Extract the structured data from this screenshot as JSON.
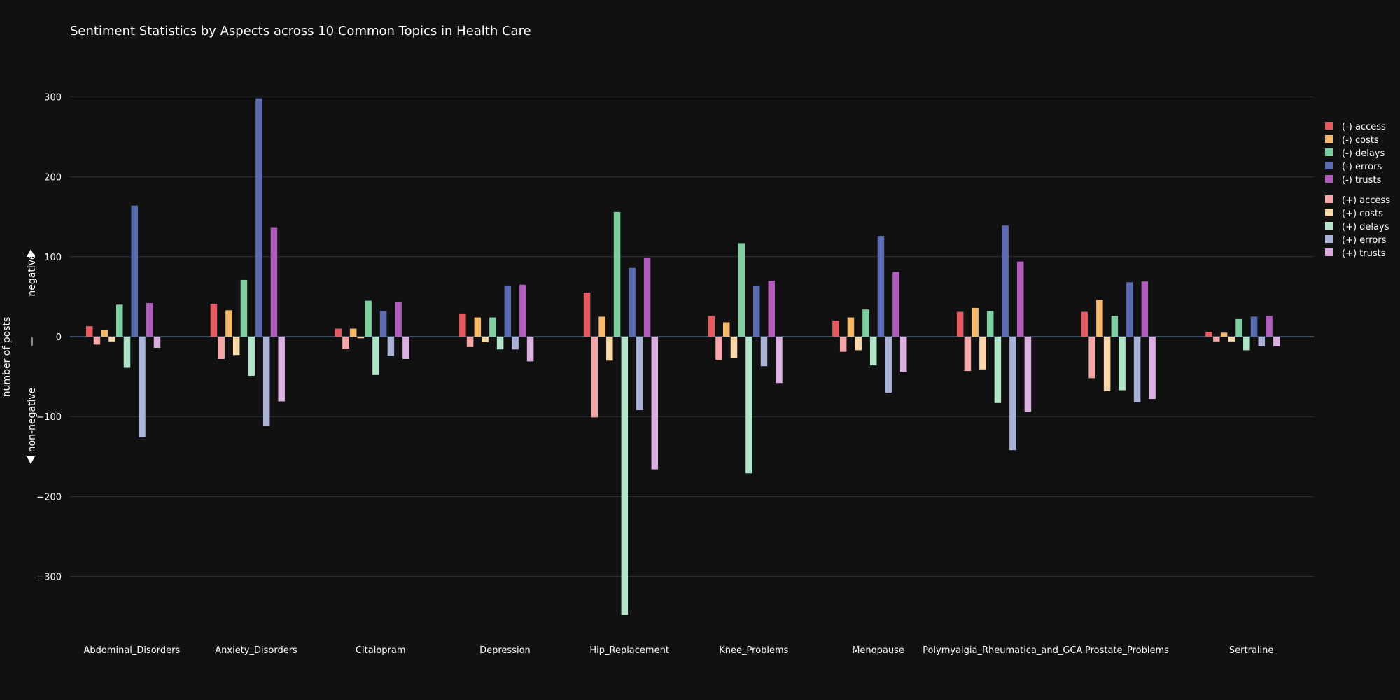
{
  "chart_data": {
    "type": "bar",
    "title": "Sentiment Statistics by Aspects across 10 Common Topics in Health Care",
    "ylabel": "number of posts",
    "ylabel_top": "negative",
    "ylabel_bottom": "non-negative",
    "ylabel_mid": "—",
    "ylim": [
      -370,
      300
    ],
    "yticks": [
      300,
      200,
      100,
      0,
      -100,
      -200,
      -300
    ],
    "ytick_labels": [
      "300",
      "200",
      "100",
      "0",
      "−100",
      "−200",
      "−300"
    ],
    "grid": true,
    "legend_placement": "right",
    "categories": [
      "Abdominal_Disorders",
      "Anxiety_Disorders",
      "Citalopram",
      "Depression",
      "Hip_Replacement",
      "Knee_Problems",
      "Menopause",
      "Polymyalgia_Rheumatica_and_GCA",
      "Prostate_Problems",
      "Sertraline"
    ],
    "series": [
      {
        "name": "(-) access",
        "color": "#e45c62",
        "values": [
          13,
          41,
          10,
          29,
          55,
          26,
          20,
          31,
          31,
          6
        ]
      },
      {
        "name": "(+) access",
        "color": "#f4a6a8",
        "values": [
          -10,
          -28,
          -15,
          -13,
          -101,
          -29,
          -19,
          -43,
          -52,
          -6
        ]
      },
      {
        "name": "(-) costs",
        "color": "#f6b86a",
        "values": [
          8,
          33,
          10,
          24,
          25,
          18,
          24,
          36,
          46,
          5
        ]
      },
      {
        "name": "(+) costs",
        "color": "#fbd8aa",
        "values": [
          -6,
          -23,
          -2,
          -7,
          -30,
          -27,
          -17,
          -41,
          -68,
          -6
        ]
      },
      {
        "name": "(-) delays",
        "color": "#7fce9f",
        "values": [
          40,
          71,
          45,
          24,
          156,
          117,
          34,
          32,
          26,
          22
        ]
      },
      {
        "name": "(+) delays",
        "color": "#b3e5cb",
        "values": [
          -39,
          -49,
          -48,
          -16,
          -348,
          -171,
          -36,
          -83,
          -67,
          -17
        ]
      },
      {
        "name": "(-) errors",
        "color": "#5c6cb3",
        "values": [
          164,
          298,
          32,
          64,
          86,
          64,
          126,
          139,
          68,
          25
        ]
      },
      {
        "name": "(+) errors",
        "color": "#aab2d8",
        "values": [
          -126,
          -112,
          -24,
          -16,
          -92,
          -37,
          -70,
          -142,
          -82,
          -12
        ]
      },
      {
        "name": "(-) trusts",
        "color": "#b05cba",
        "values": [
          42,
          137,
          43,
          65,
          99,
          70,
          81,
          94,
          69,
          26
        ]
      },
      {
        "name": "(+) trusts",
        "color": "#dbb0e0",
        "values": [
          -14,
          -81,
          -28,
          -31,
          -166,
          -58,
          -44,
          -94,
          -78,
          -12
        ]
      }
    ],
    "legend": [
      {
        "name": "(-) access",
        "color": "#e45c62"
      },
      {
        "name": "(-) costs",
        "color": "#f6b86a"
      },
      {
        "name": "(-) delays",
        "color": "#7fce9f"
      },
      {
        "name": "(-) errors",
        "color": "#5c6cb3"
      },
      {
        "name": "(-) trusts",
        "color": "#b05cba"
      },
      {
        "name": "(+) access",
        "color": "#f4a6a8"
      },
      {
        "name": "(+) costs",
        "color": "#fbd8aa"
      },
      {
        "name": "(+) delays",
        "color": "#b3e5cb"
      },
      {
        "name": "(+) errors",
        "color": "#aab2d8"
      },
      {
        "name": "(+) trusts",
        "color": "#dbb0e0"
      }
    ]
  }
}
